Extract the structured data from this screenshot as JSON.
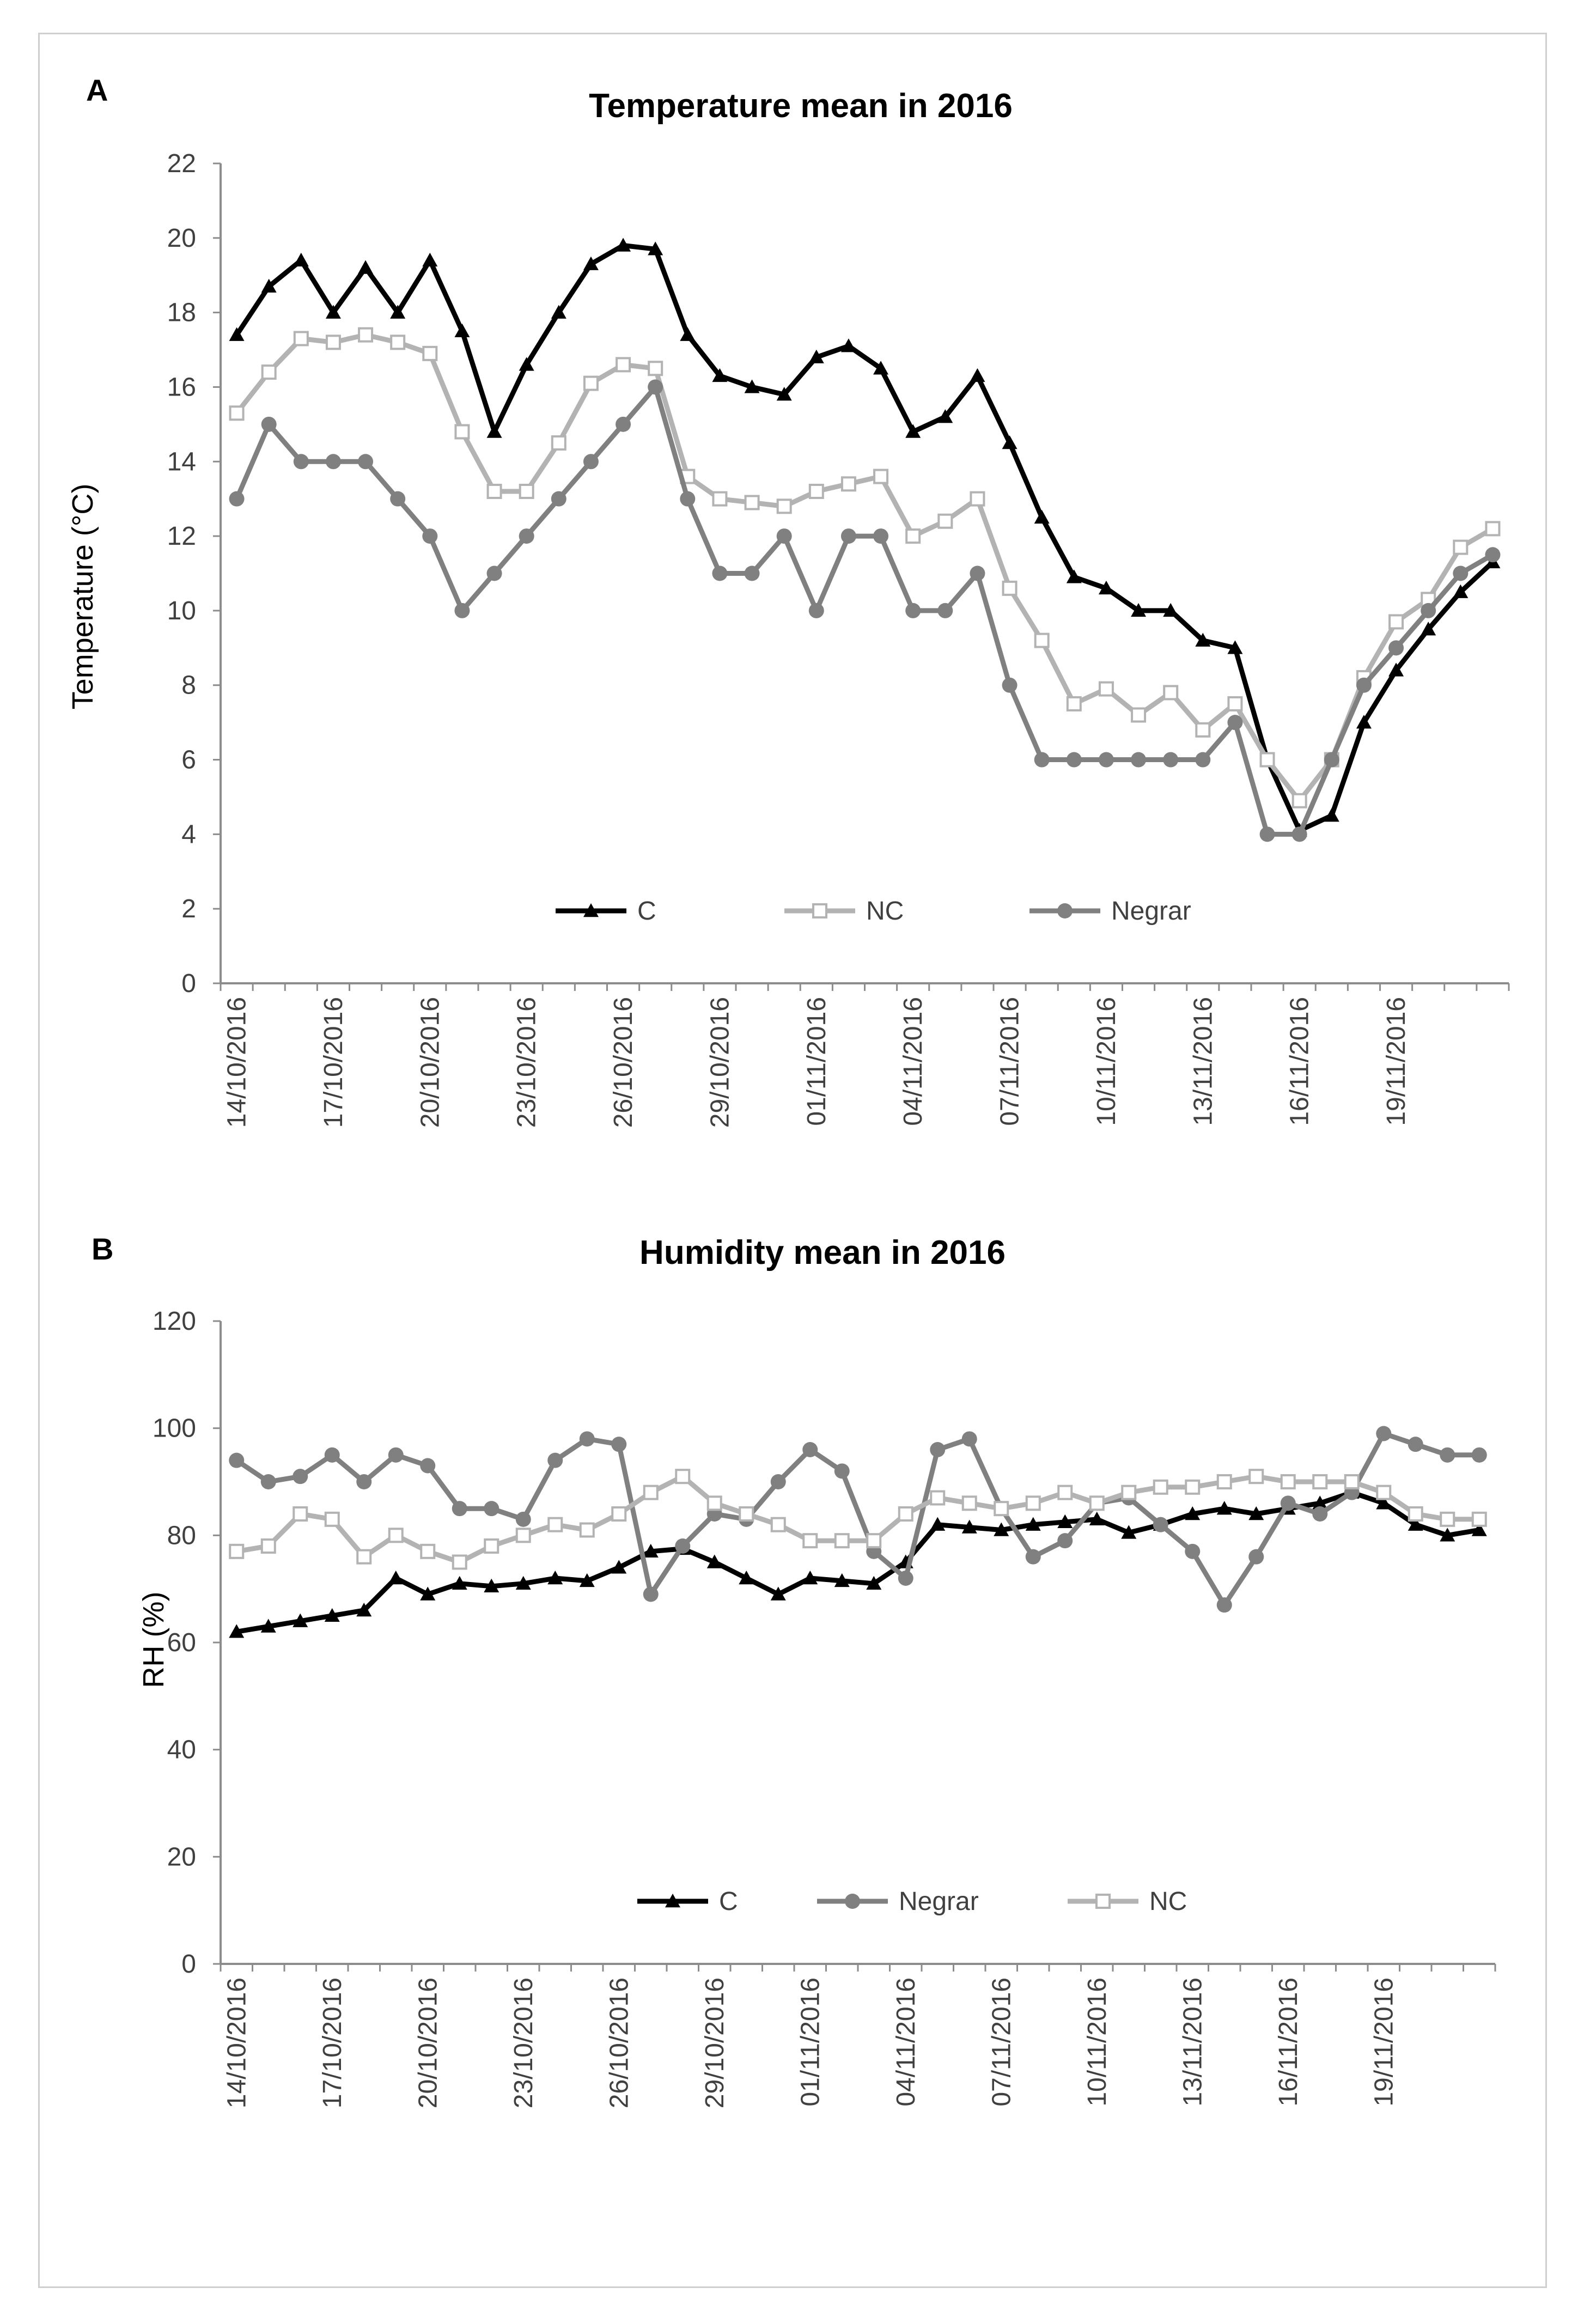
{
  "chart_data": [
    {
      "panel": "A",
      "type": "line",
      "title": "Temperature mean in 2016",
      "xlabel": "",
      "ylabel": "Temperature (°C)",
      "ylim": [
        0,
        22
      ],
      "yticks": [
        0,
        2,
        4,
        6,
        8,
        10,
        12,
        14,
        16,
        18,
        20,
        22
      ],
      "x": [
        "14/10/2016",
        "15/10/2016",
        "16/10/2016",
        "17/10/2016",
        "18/10/2016",
        "19/10/2016",
        "20/10/2016",
        "21/10/2016",
        "22/10/2016",
        "23/10/2016",
        "24/10/2016",
        "25/10/2016",
        "26/10/2016",
        "27/10/2016",
        "28/10/2016",
        "29/10/2016",
        "30/10/2016",
        "31/10/2016",
        "01/11/2016",
        "02/11/2016",
        "03/11/2016",
        "04/11/2016",
        "05/11/2016",
        "06/11/2016",
        "07/11/2016",
        "08/11/2016",
        "09/11/2016",
        "10/11/2016",
        "11/11/2016",
        "12/11/2016",
        "13/11/2016",
        "14/11/2016",
        "15/11/2016",
        "16/11/2016",
        "17/11/2016",
        "18/11/2016",
        "19/11/2016",
        "20/11/2016",
        "21/11/2016",
        "22/11/2016"
      ],
      "x_tick_labels": [
        "14/10/2016",
        "17/10/2016",
        "20/10/2016",
        "23/10/2016",
        "26/10/2016",
        "29/10/2016",
        "01/11/2016",
        "04/11/2016",
        "07/11/2016",
        "10/11/2016",
        "13/11/2016",
        "16/11/2016",
        "19/11/2016"
      ],
      "grid": false,
      "legend_position": "bottom-center",
      "legend": [
        "C",
        "NC",
        "Negrar"
      ],
      "series": [
        {
          "name": "C",
          "color": "#000000",
          "marker": "triangle",
          "values": [
            17.4,
            18.7,
            19.4,
            18.0,
            19.2,
            18.0,
            19.4,
            17.5,
            14.8,
            16.6,
            18.0,
            19.3,
            19.8,
            19.7,
            17.4,
            16.3,
            16.0,
            15.8,
            16.8,
            17.1,
            16.5,
            14.8,
            15.2,
            16.3,
            14.5,
            12.5,
            10.9,
            10.6,
            10.0,
            10.0,
            9.2,
            9.0,
            6.0,
            4.1,
            4.5,
            7.0,
            8.4,
            9.5,
            10.5,
            11.3
          ]
        },
        {
          "name": "NC",
          "color": "#b3b3b3",
          "marker": "square",
          "values": [
            15.3,
            16.4,
            17.3,
            17.2,
            17.4,
            17.2,
            16.9,
            14.8,
            13.2,
            13.2,
            14.5,
            16.1,
            16.6,
            16.5,
            13.6,
            13.0,
            12.9,
            12.8,
            13.2,
            13.4,
            13.6,
            12.0,
            12.4,
            13.0,
            10.6,
            9.2,
            7.5,
            7.9,
            7.2,
            7.8,
            6.8,
            7.5,
            6.0,
            4.9,
            6.0,
            8.2,
            9.7,
            10.3,
            11.7,
            12.2
          ]
        },
        {
          "name": "Negrar",
          "color": "#808080",
          "marker": "circle",
          "values": [
            13.0,
            15.0,
            14.0,
            14.0,
            14.0,
            13.0,
            12.0,
            10.0,
            11.0,
            12.0,
            13.0,
            14.0,
            15.0,
            16.0,
            13.0,
            11.0,
            11.0,
            12.0,
            10.0,
            12.0,
            12.0,
            10.0,
            10.0,
            11.0,
            8.0,
            6.0,
            6.0,
            6.0,
            6.0,
            6.0,
            6.0,
            7.0,
            4.0,
            4.0,
            6.0,
            8.0,
            9.0,
            10.0,
            11.0,
            11.5
          ]
        }
      ]
    },
    {
      "panel": "B",
      "type": "line",
      "title": "Humidity mean in 2016",
      "xlabel": "",
      "ylabel": "RH (%)",
      "ylim": [
        0,
        120
      ],
      "yticks": [
        0,
        20,
        40,
        60,
        80,
        100,
        120
      ],
      "x": [
        "14/10/2016",
        "15/10/2016",
        "16/10/2016",
        "17/10/2016",
        "18/10/2016",
        "19/10/2016",
        "20/10/2016",
        "21/10/2016",
        "22/10/2016",
        "23/10/2016",
        "24/10/2016",
        "25/10/2016",
        "26/10/2016",
        "27/10/2016",
        "28/10/2016",
        "29/10/2016",
        "30/10/2016",
        "31/10/2016",
        "01/11/2016",
        "02/11/2016",
        "03/11/2016",
        "04/11/2016",
        "05/11/2016",
        "06/11/2016",
        "07/11/2016",
        "08/11/2016",
        "09/11/2016",
        "10/11/2016",
        "11/11/2016",
        "12/11/2016",
        "13/11/2016",
        "14/11/2016",
        "15/11/2016",
        "16/11/2016",
        "17/11/2016",
        "18/11/2016",
        "19/11/2016",
        "20/11/2016",
        "21/11/2016",
        "22/11/2016"
      ],
      "x_tick_labels": [
        "14/10/2016",
        "17/10/2016",
        "20/10/2016",
        "23/10/2016",
        "26/10/2016",
        "29/10/2016",
        "01/11/2016",
        "04/11/2016",
        "07/11/2016",
        "10/11/2016",
        "13/11/2016",
        "16/11/2016",
        "19/11/2016"
      ],
      "grid": false,
      "legend_position": "bottom-center",
      "legend": [
        "C",
        "Negrar",
        "NC"
      ],
      "series": [
        {
          "name": "C",
          "color": "#000000",
          "marker": "triangle",
          "values": [
            62,
            63,
            64,
            65,
            66,
            72,
            69,
            71,
            70.5,
            71,
            72,
            71.5,
            74,
            77,
            77.5,
            75,
            72,
            69,
            72,
            71.5,
            71,
            75,
            82,
            81.5,
            81,
            82,
            82.5,
            83,
            80.5,
            82,
            84,
            85,
            84,
            85,
            86,
            88,
            86,
            82,
            80,
            81
          ]
        },
        {
          "name": "Negrar",
          "color": "#808080",
          "marker": "circle",
          "values": [
            94,
            90,
            91,
            95,
            90,
            95,
            93,
            85,
            85,
            83,
            94,
            98,
            97,
            69,
            78,
            84,
            83,
            90,
            96,
            92,
            77,
            72,
            96,
            98,
            85,
            76,
            79,
            86,
            87,
            82,
            77,
            67,
            76,
            86,
            84,
            88,
            99,
            97,
            95,
            95
          ]
        },
        {
          "name": "NC",
          "color": "#b3b3b3",
          "marker": "square",
          "values": [
            77,
            78,
            84,
            83,
            76,
            80,
            77,
            75,
            78,
            80,
            82,
            81,
            84,
            88,
            91,
            86,
            84,
            82,
            79,
            79,
            79,
            84,
            87,
            86,
            85,
            86,
            88,
            86,
            88,
            89,
            89,
            90,
            91,
            90,
            90,
            90,
            88,
            84,
            83,
            83
          ]
        }
      ]
    }
  ]
}
